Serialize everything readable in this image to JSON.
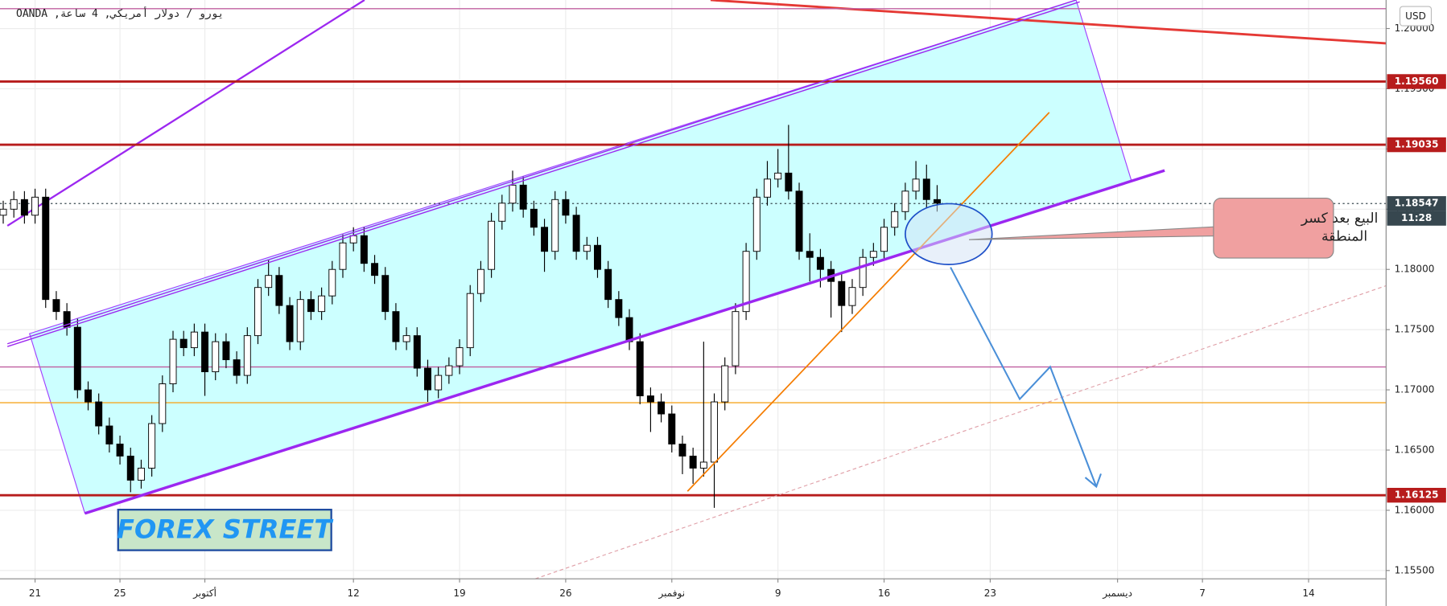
{
  "chart_data": {
    "type": "candlestick",
    "title": "يورو / دولار أمريكي, 4 ساعة, OANDA",
    "currency": "USD",
    "countdown": "11:28",
    "watermark": "FOREX STREET",
    "annotation": [
      "البيع بعد كسر",
      "المنطقة"
    ],
    "xlim": [
      -1.652,
      63.565
    ],
    "ylim": [
      1.15431,
      1.20237
    ],
    "grid": true,
    "up_color": "#ffffff",
    "down_color": "#000000",
    "wick_color": "#000000",
    "xticks": [
      {
        "value": 0,
        "label": "21"
      },
      {
        "value": 4,
        "label": "25"
      },
      {
        "value": 8,
        "label": "أكتوبر"
      },
      {
        "value": 15,
        "label": "12"
      },
      {
        "value": 20,
        "label": "19"
      },
      {
        "value": 25,
        "label": "26"
      },
      {
        "value": 30,
        "label": "نوفمبر"
      },
      {
        "value": 35,
        "label": "9"
      },
      {
        "value": 40,
        "label": "16"
      },
      {
        "value": 45,
        "label": "23"
      },
      {
        "value": 51,
        "label": "ديسمبر"
      },
      {
        "value": 55,
        "label": "7"
      },
      {
        "value": 60,
        "label": "14"
      }
    ],
    "yticks": [
      {
        "value": 1.155,
        "label": "1.15500"
      },
      {
        "value": 1.16,
        "label": "1.16000"
      },
      {
        "value": 1.165,
        "label": "1.16500"
      },
      {
        "value": 1.17,
        "label": "1.17000"
      },
      {
        "value": 1.175,
        "label": "1.17500"
      },
      {
        "value": 1.18,
        "label": "1.18000"
      },
      {
        "value": 1.185,
        "label": "1.18500"
      },
      {
        "value": 1.19,
        "label": "1.19000"
      },
      {
        "value": 1.195,
        "label": "1.19500"
      },
      {
        "value": 1.2,
        "label": "1.20000"
      }
    ],
    "levels": [
      {
        "value": 1.1956,
        "label": "1.19560",
        "color": "#b71c1c",
        "style": "solid"
      },
      {
        "value": 1.19035,
        "label": "1.19035",
        "color": "#b71c1c",
        "style": "solid"
      },
      {
        "value": 1.18547,
        "label": "1.18547",
        "color": "#37474f",
        "style": "dotted"
      },
      {
        "value": 1.16125,
        "label": "1.16125",
        "color": "#b71c1c",
        "style": "solid"
      },
      {
        "value": 1.20165,
        "color": "#c060a0",
        "style": "thin"
      },
      {
        "value": 1.1719,
        "color": "#c060a0",
        "style": "thin"
      },
      {
        "value": 1.16893,
        "color": "#f5a623",
        "style": "thin"
      }
    ],
    "x": [
      -1.5,
      -1,
      -0.5,
      0,
      0.5,
      1,
      1.5,
      2,
      2.5,
      3,
      3.5,
      4,
      4.5,
      5,
      5.5,
      6,
      6.5,
      7,
      7.5,
      8,
      8.5,
      9,
      9.5,
      10,
      10.5,
      11,
      11.5,
      12,
      12.5,
      13,
      13.5,
      14,
      14.5,
      15,
      15.5,
      16,
      16.5,
      17,
      17.5,
      18,
      18.5,
      19,
      19.5,
      20,
      20.5,
      21,
      21.5,
      22,
      22.5,
      23,
      23.5,
      24,
      24.5,
      25,
      25.5,
      26,
      26.5,
      27,
      27.5,
      28,
      28.5,
      29,
      29.5,
      30,
      30.5,
      31,
      31.5,
      32,
      32.5,
      33,
      33.5,
      34,
      34.5,
      35,
      35.5,
      36,
      36.5,
      37,
      37.5,
      38,
      38.5,
      39,
      39.5,
      40,
      40.5,
      41,
      41.5,
      42,
      42.5
    ],
    "candles": [
      [
        1.1845,
        1.1857,
        1.1838,
        1.185
      ],
      [
        1.185,
        1.1865,
        1.1843,
        1.1858
      ],
      [
        1.1858,
        1.1865,
        1.1838,
        1.1845
      ],
      [
        1.1845,
        1.1867,
        1.1838,
        1.186
      ],
      [
        1.186,
        1.1867,
        1.1768,
        1.1775
      ],
      [
        1.1775,
        1.1782,
        1.1758,
        1.1765
      ],
      [
        1.1765,
        1.1772,
        1.1745,
        1.1752
      ],
      [
        1.1752,
        1.1759,
        1.1693,
        1.17
      ],
      [
        1.17,
        1.1707,
        1.1683,
        1.169
      ],
      [
        1.169,
        1.1697,
        1.1663,
        1.167
      ],
      [
        1.167,
        1.1677,
        1.1648,
        1.1655
      ],
      [
        1.1655,
        1.1662,
        1.1638,
        1.1645
      ],
      [
        1.1645,
        1.1652,
        1.1615,
        1.1625
      ],
      [
        1.1625,
        1.1642,
        1.1618,
        1.1635
      ],
      [
        1.1635,
        1.1679,
        1.1628,
        1.1672
      ],
      [
        1.1672,
        1.1712,
        1.1665,
        1.1705
      ],
      [
        1.1705,
        1.1749,
        1.1698,
        1.1742
      ],
      [
        1.1742,
        1.1749,
        1.1728,
        1.1735
      ],
      [
        1.1735,
        1.1755,
        1.1728,
        1.1748
      ],
      [
        1.1748,
        1.1755,
        1.1695,
        1.1715
      ],
      [
        1.1715,
        1.1747,
        1.1708,
        1.174
      ],
      [
        1.174,
        1.1747,
        1.1718,
        1.1725
      ],
      [
        1.1725,
        1.1732,
        1.1705,
        1.1712
      ],
      [
        1.1712,
        1.1752,
        1.1705,
        1.1745
      ],
      [
        1.1745,
        1.1792,
        1.1738,
        1.1785
      ],
      [
        1.1785,
        1.1808,
        1.1778,
        1.1795
      ],
      [
        1.1795,
        1.1802,
        1.1763,
        1.177
      ],
      [
        1.177,
        1.1777,
        1.1733,
        1.174
      ],
      [
        1.174,
        1.1782,
        1.1733,
        1.1775
      ],
      [
        1.1775,
        1.1782,
        1.1758,
        1.1765
      ],
      [
        1.1765,
        1.1785,
        1.1758,
        1.1778
      ],
      [
        1.1778,
        1.1807,
        1.1771,
        1.18
      ],
      [
        1.18,
        1.1829,
        1.1793,
        1.1822
      ],
      [
        1.1822,
        1.1835,
        1.1815,
        1.1828
      ],
      [
        1.1828,
        1.1835,
        1.1798,
        1.1805
      ],
      [
        1.1805,
        1.1812,
        1.1788,
        1.1795
      ],
      [
        1.1795,
        1.1802,
        1.1758,
        1.1765
      ],
      [
        1.1765,
        1.1772,
        1.1733,
        1.174
      ],
      [
        1.174,
        1.1752,
        1.1733,
        1.1745
      ],
      [
        1.1745,
        1.1752,
        1.1711,
        1.1718
      ],
      [
        1.1718,
        1.1725,
        1.169,
        1.17
      ],
      [
        1.17,
        1.1719,
        1.1693,
        1.1712
      ],
      [
        1.1712,
        1.1727,
        1.1705,
        1.172
      ],
      [
        1.172,
        1.1742,
        1.1713,
        1.1735
      ],
      [
        1.1735,
        1.1787,
        1.1728,
        1.178
      ],
      [
        1.178,
        1.1807,
        1.1773,
        1.18
      ],
      [
        1.18,
        1.1847,
        1.1793,
        1.184
      ],
      [
        1.184,
        1.1862,
        1.1833,
        1.1855
      ],
      [
        1.1855,
        1.1882,
        1.1848,
        1.187
      ],
      [
        1.187,
        1.1877,
        1.1843,
        1.185
      ],
      [
        1.185,
        1.1857,
        1.1828,
        1.1835
      ],
      [
        1.1835,
        1.1842,
        1.1798,
        1.1815
      ],
      [
        1.1815,
        1.1865,
        1.1808,
        1.1858
      ],
      [
        1.1858,
        1.1865,
        1.1838,
        1.1845
      ],
      [
        1.1845,
        1.1852,
        1.1808,
        1.1815
      ],
      [
        1.1815,
        1.1827,
        1.1808,
        1.182
      ],
      [
        1.182,
        1.1827,
        1.1793,
        1.18
      ],
      [
        1.18,
        1.1807,
        1.1768,
        1.1775
      ],
      [
        1.1775,
        1.1782,
        1.1753,
        1.176
      ],
      [
        1.176,
        1.1767,
        1.1733,
        1.174
      ],
      [
        1.174,
        1.1747,
        1.1688,
        1.1695
      ],
      [
        1.1695,
        1.1702,
        1.1665,
        1.169
      ],
      [
        1.169,
        1.1697,
        1.1673,
        1.168
      ],
      [
        1.168,
        1.1687,
        1.1648,
        1.1655
      ],
      [
        1.1655,
        1.1662,
        1.163,
        1.1645
      ],
      [
        1.1645,
        1.1652,
        1.1622,
        1.1635
      ],
      [
        1.1635,
        1.174,
        1.1628,
        1.164
      ],
      [
        1.164,
        1.1697,
        1.1602,
        1.169
      ],
      [
        1.169,
        1.1727,
        1.1683,
        1.172
      ],
      [
        1.172,
        1.1772,
        1.1713,
        1.1765
      ],
      [
        1.1765,
        1.1822,
        1.1758,
        1.1815
      ],
      [
        1.1815,
        1.1867,
        1.1808,
        1.186
      ],
      [
        1.186,
        1.189,
        1.1853,
        1.1875
      ],
      [
        1.1875,
        1.19,
        1.1868,
        1.188
      ],
      [
        1.188,
        1.192,
        1.1858,
        1.1865
      ],
      [
        1.1865,
        1.1872,
        1.1808,
        1.1815
      ],
      [
        1.1815,
        1.183,
        1.179,
        1.181
      ],
      [
        1.181,
        1.1817,
        1.1785,
        1.18
      ],
      [
        1.18,
        1.1807,
        1.176,
        1.179
      ],
      [
        1.179,
        1.1797,
        1.1748,
        1.177
      ],
      [
        1.177,
        1.1792,
        1.1763,
        1.1785
      ],
      [
        1.1785,
        1.1817,
        1.1778,
        1.181
      ],
      [
        1.181,
        1.1822,
        1.1803,
        1.1815
      ],
      [
        1.1815,
        1.1842,
        1.1808,
        1.1835
      ],
      [
        1.1835,
        1.1855,
        1.1828,
        1.1848
      ],
      [
        1.1848,
        1.1872,
        1.1841,
        1.1865
      ],
      [
        1.1865,
        1.189,
        1.1858,
        1.1875
      ],
      [
        1.1875,
        1.1887,
        1.1851,
        1.1858
      ],
      [
        1.1858,
        1.187,
        1.1848,
        1.1855
      ]
    ]
  }
}
